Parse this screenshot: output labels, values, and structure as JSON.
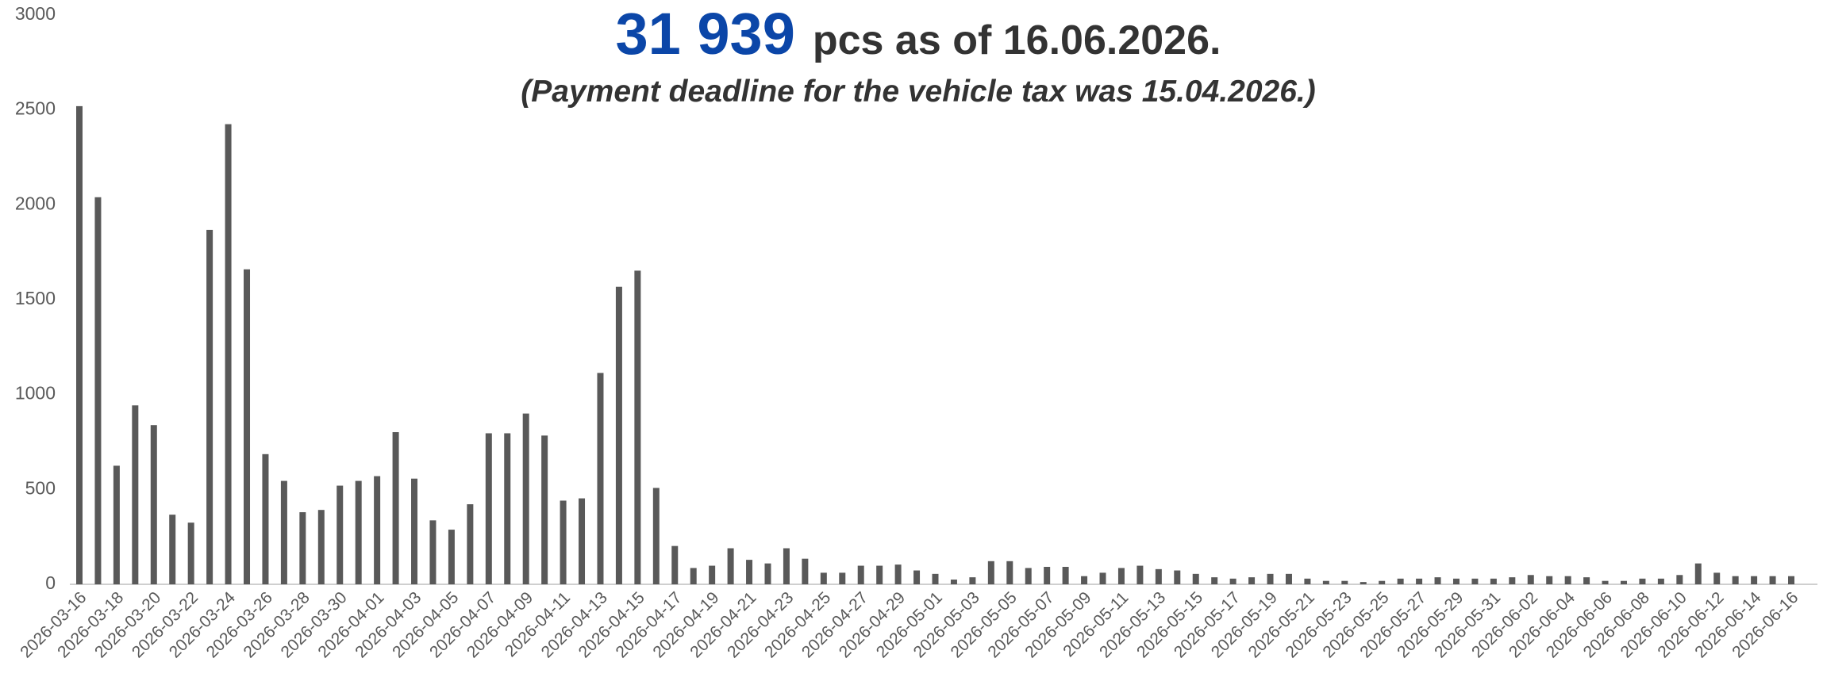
{
  "chart_data": {
    "type": "bar",
    "title_count": "31 939",
    "title": "pcs as of 16.06.2026.",
    "subtitle": "(Payment deadline for the vehicle tax was 15.04.2026.)",
    "color": "#595959",
    "count_color": "#0b46a8",
    "grid": false,
    "ylim": [
      0,
      3000
    ],
    "yticks": [
      0,
      500,
      1000,
      1500,
      2000,
      2500,
      3000
    ],
    "categories": [
      "2026-03-16",
      null,
      "2026-03-18",
      null,
      "2026-03-20",
      null,
      "2026-03-22",
      null,
      "2026-03-24",
      null,
      "2026-03-26",
      null,
      "2026-03-28",
      null,
      "2026-03-30",
      null,
      "2026-04-01",
      null,
      "2026-04-03",
      null,
      "2026-04-05",
      null,
      "2026-04-07",
      null,
      "2026-04-09",
      null,
      "2026-04-11",
      null,
      "2026-04-13",
      null,
      "2026-04-15",
      null,
      "2026-04-17",
      null,
      "2026-04-19",
      null,
      "2026-04-21",
      null,
      "2026-04-23",
      null,
      "2026-04-25",
      null,
      "2026-04-27",
      null,
      "2026-04-29",
      null,
      "2026-05-01",
      null,
      "2026-05-03",
      null,
      "2026-05-05",
      null,
      "2026-05-07",
      null,
      "2026-05-09",
      null,
      "2026-05-11",
      null,
      "2026-05-13",
      null,
      "2026-05-15",
      null,
      "2026-05-17",
      null,
      "2026-05-19",
      null,
      "2026-05-21",
      null,
      "2026-05-23",
      null,
      "2026-05-25",
      null,
      "2026-05-27",
      null,
      "2026-05-29",
      null,
      "2026-05-31",
      null,
      "2026-06-02",
      null,
      "2026-06-04",
      null,
      "2026-06-06",
      null,
      "2026-06-08",
      null,
      "2026-06-10",
      null,
      "2026-06-12",
      null,
      "2026-06-14",
      null,
      "2026-06-16"
    ],
    "values": [
      2520,
      2040,
      625,
      943,
      839,
      367,
      325,
      1868,
      2425,
      1660,
      686,
      545,
      380,
      392,
      520,
      545,
      570,
      802,
      557,
      337,
      288,
      422,
      796,
      796,
      900,
      784,
      441,
      453,
      1114,
      1568,
      1653,
      508,
      202,
      86,
      98,
      190,
      129,
      110,
      190,
      135,
      61,
      61,
      98,
      98,
      104,
      73,
      55,
      25,
      37,
      122,
      122,
      86,
      92,
      92,
      43,
      61,
      86,
      98,
      80,
      73,
      55,
      37,
      30,
      37,
      55,
      55,
      30,
      18,
      18,
      12,
      18,
      30,
      30,
      37,
      30,
      30,
      30,
      37,
      49,
      43,
      43,
      37,
      18,
      18,
      30,
      30,
      49,
      110,
      61,
      43,
      43,
      43,
      43
    ]
  }
}
